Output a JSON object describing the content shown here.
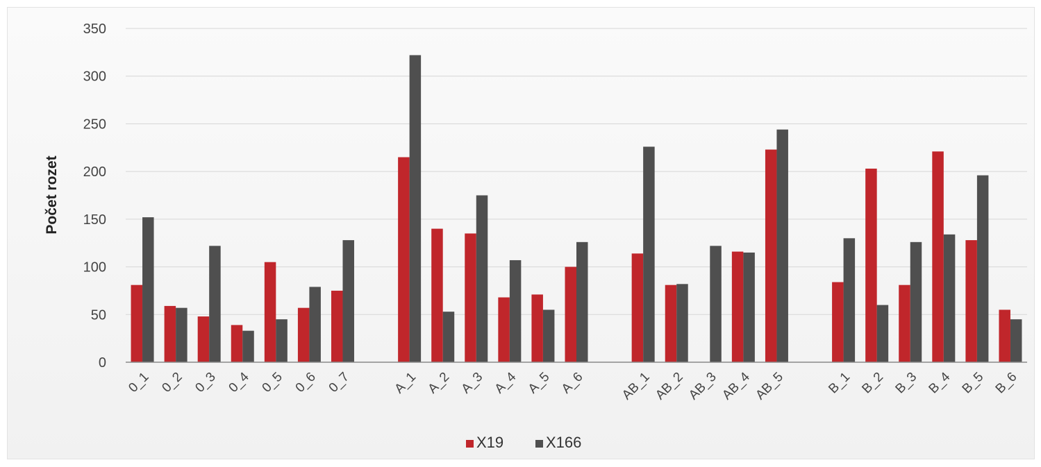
{
  "chart_data": {
    "type": "bar",
    "title": "",
    "xlabel": "",
    "ylabel": "Počet rozet",
    "ylim": [
      0,
      350
    ],
    "yticks": [
      0,
      50,
      100,
      150,
      200,
      250,
      300,
      350
    ],
    "grid": true,
    "legend_position": "bottom",
    "groups": [
      [
        "0_1",
        "0_2",
        "0_3",
        "0_4",
        "0_5",
        "0_6",
        "0_7"
      ],
      [
        "A_1",
        "A_2",
        "A_3",
        "A_4",
        "A_5",
        "A_6"
      ],
      [
        "AB_1",
        "AB_2",
        "AB_3",
        "AB_4",
        "AB_5"
      ],
      [
        "B_1",
        "B_2",
        "B_3",
        "B_4",
        "B_5",
        "B_6"
      ]
    ],
    "categories": [
      "0_1",
      "0_2",
      "0_3",
      "0_4",
      "0_5",
      "0_6",
      "0_7",
      "A_1",
      "A_2",
      "A_3",
      "A_4",
      "A_5",
      "A_6",
      "AB_1",
      "AB_2",
      "AB_3",
      "AB_4",
      "AB_5",
      "B_1",
      "B_2",
      "B_3",
      "B_4",
      "B_5",
      "B_6"
    ],
    "series": [
      {
        "name": "X19",
        "color": "#c0262b",
        "values": [
          81,
          59,
          48,
          39,
          105,
          57,
          75,
          215,
          140,
          135,
          68,
          71,
          100,
          114,
          81,
          0,
          116,
          223,
          84,
          203,
          81,
          221,
          128,
          55
        ]
      },
      {
        "name": "X166",
        "color": "#4f4f4f",
        "values": [
          152,
          57,
          122,
          33,
          45,
          79,
          128,
          322,
          53,
          175,
          107,
          55,
          126,
          226,
          82,
          122,
          115,
          244,
          130,
          60,
          126,
          134,
          196,
          45
        ]
      }
    ]
  }
}
